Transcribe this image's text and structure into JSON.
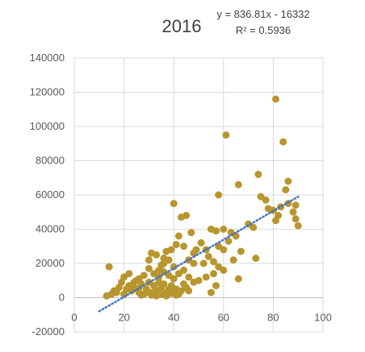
{
  "chart_data": {
    "type": "scatter",
    "title": "2016",
    "trendline": {
      "equation": "y = 836.81x - 16332",
      "r_squared": "R² = 0.5936",
      "slope": 836.81,
      "intercept": -16332,
      "x_range": [
        10,
        90
      ],
      "color": "#4472c4",
      "style": "dotted"
    },
    "marker_color": "#b8962e",
    "grid": true,
    "xlim": [
      0,
      100
    ],
    "ylim": [
      -20000,
      140000
    ],
    "x_ticks": [
      "0",
      "20",
      "40",
      "60",
      "80",
      "100"
    ],
    "y_ticks": [
      "-20000",
      "0",
      "20000",
      "40000",
      "60000",
      "80000",
      "100000",
      "120000",
      "140000"
    ],
    "x_tick_values": [
      0,
      20,
      40,
      60,
      80,
      100
    ],
    "y_tick_values": [
      -20000,
      0,
      20000,
      40000,
      60000,
      80000,
      100000,
      120000,
      140000
    ],
    "points": [
      [
        81,
        116000
      ],
      [
        61,
        95000
      ],
      [
        84,
        91000
      ],
      [
        74,
        72000
      ],
      [
        86,
        68000
      ],
      [
        66,
        66000
      ],
      [
        85,
        63000
      ],
      [
        58,
        60000
      ],
      [
        75,
        59000
      ],
      [
        77,
        57000
      ],
      [
        83,
        53000
      ],
      [
        78,
        52000
      ],
      [
        89,
        54000
      ],
      [
        80,
        51000
      ],
      [
        82,
        48000
      ],
      [
        88,
        50000
      ],
      [
        86,
        55000
      ],
      [
        89,
        46000
      ],
      [
        90,
        42000
      ],
      [
        81,
        45000
      ],
      [
        72,
        41000
      ],
      [
        70,
        43000
      ],
      [
        63,
        38000
      ],
      [
        65,
        36000
      ],
      [
        60,
        40000
      ],
      [
        57,
        39000
      ],
      [
        55,
        40000
      ],
      [
        62,
        33000
      ],
      [
        58,
        30000
      ],
      [
        60,
        28000
      ],
      [
        67,
        27000
      ],
      [
        73,
        23000
      ],
      [
        64,
        22000
      ],
      [
        60,
        16000
      ],
      [
        66,
        11000
      ],
      [
        57,
        7000
      ],
      [
        55,
        3000
      ],
      [
        53,
        12000
      ],
      [
        56,
        14000
      ],
      [
        58,
        18000
      ],
      [
        56,
        21000
      ],
      [
        50,
        10000
      ],
      [
        48,
        26000
      ],
      [
        49,
        28000
      ],
      [
        47,
        38000
      ],
      [
        45,
        48000
      ],
      [
        43,
        47000
      ],
      [
        40,
        55000
      ],
      [
        44,
        30000
      ],
      [
        42,
        36000
      ],
      [
        41,
        31000
      ],
      [
        39,
        28000
      ],
      [
        37,
        27000
      ],
      [
        38,
        22000
      ],
      [
        40,
        18000
      ],
      [
        36,
        23000
      ],
      [
        35,
        19000
      ],
      [
        33,
        25000
      ],
      [
        31,
        26000
      ],
      [
        30,
        22000
      ],
      [
        30,
        17000
      ],
      [
        32,
        14000
      ],
      [
        34,
        12000
      ],
      [
        36,
        15000
      ],
      [
        38,
        13000
      ],
      [
        40,
        11000
      ],
      [
        42,
        14000
      ],
      [
        44,
        16000
      ],
      [
        46,
        12000
      ],
      [
        48,
        9000
      ],
      [
        45,
        6000
      ],
      [
        43,
        4000
      ],
      [
        41,
        5000
      ],
      [
        39,
        7000
      ],
      [
        37,
        3000
      ],
      [
        35,
        6000
      ],
      [
        33,
        4000
      ],
      [
        31,
        3000
      ],
      [
        29,
        5000
      ],
      [
        28,
        2000
      ],
      [
        27,
        8000
      ],
      [
        26,
        3000
      ],
      [
        25,
        10000
      ],
      [
        23,
        4000
      ],
      [
        22,
        7000
      ],
      [
        21,
        5000
      ],
      [
        20,
        2000
      ],
      [
        19,
        9000
      ],
      [
        18,
        6000
      ],
      [
        17,
        3000
      ],
      [
        16,
        4000
      ],
      [
        15,
        2000
      ],
      [
        14,
        18000
      ],
      [
        13,
        1000
      ],
      [
        20,
        12000
      ],
      [
        22,
        14000
      ],
      [
        24,
        9000
      ],
      [
        26,
        11000
      ],
      [
        28,
        13000
      ],
      [
        30,
        9000
      ],
      [
        32,
        7000
      ],
      [
        34,
        9000
      ],
      [
        36,
        8000
      ],
      [
        38,
        5000
      ],
      [
        40,
        3000
      ],
      [
        42,
        2000
      ],
      [
        44,
        8000
      ],
      [
        46,
        4000
      ],
      [
        33,
        1000
      ],
      [
        35,
        2000
      ],
      [
        37,
        1000
      ],
      [
        31,
        1500
      ],
      [
        29,
        3000
      ],
      [
        27,
        1500
      ],
      [
        39,
        2500
      ],
      [
        41,
        1500
      ],
      [
        26,
        5500
      ],
      [
        24,
        6000
      ],
      [
        34,
        16000
      ],
      [
        36,
        20000
      ],
      [
        52,
        20000
      ],
      [
        54,
        24000
      ],
      [
        51,
        32000
      ],
      [
        53,
        28000
      ],
      [
        46,
        22000
      ],
      [
        48,
        20000
      ]
    ]
  }
}
